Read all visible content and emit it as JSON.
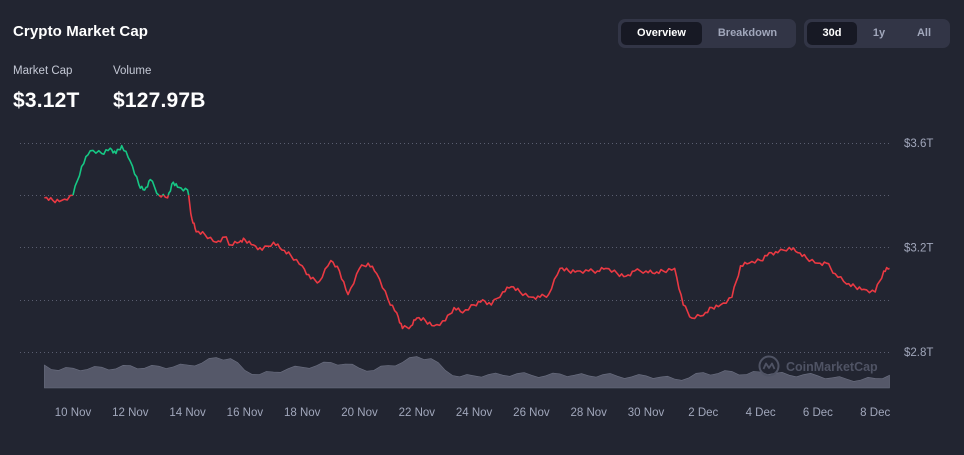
{
  "header": {
    "title": "Crypto Market Cap"
  },
  "stats": {
    "market_cap_label": "Market Cap",
    "market_cap_value": "$3.12T",
    "volume_label": "Volume",
    "volume_value": "$127.97B"
  },
  "view_toggle": {
    "overview": "Overview",
    "breakdown": "Breakdown",
    "active": "overview"
  },
  "range_toggle": {
    "d30": "30d",
    "y1": "1y",
    "all": "All",
    "active": "30d"
  },
  "watermark": "CoinMarketCap",
  "colors": {
    "up": "#16c784",
    "down": "#ea3943",
    "volume": "#5e6273",
    "grid": "#5a5e70"
  },
  "chart_data": {
    "type": "line",
    "title": "",
    "xlabel": "",
    "ylabel": "",
    "x_start": "9 Nov",
    "x_end": "8 Dec",
    "x_ticks": [
      {
        "day": 10,
        "label": "10 Nov"
      },
      {
        "day": 12,
        "label": "12 Nov"
      },
      {
        "day": 14,
        "label": "14 Nov"
      },
      {
        "day": 16,
        "label": "16 Nov"
      },
      {
        "day": 18,
        "label": "18 Nov"
      },
      {
        "day": 20,
        "label": "20 Nov"
      },
      {
        "day": 22,
        "label": "22 Nov"
      },
      {
        "day": 24,
        "label": "24 Nov"
      },
      {
        "day": 26,
        "label": "26 Nov"
      },
      {
        "day": 28,
        "label": "28 Nov"
      },
      {
        "day": 30,
        "label": "30 Nov"
      },
      {
        "day": 32,
        "label": "2 Dec"
      },
      {
        "day": 34,
        "label": "4 Dec"
      },
      {
        "day": 36,
        "label": "6 Dec"
      },
      {
        "day": 38,
        "label": "8 Dec"
      }
    ],
    "y_ticks": [
      {
        "value": 3.6,
        "label": "$3.6T"
      },
      {
        "value": 3.2,
        "label": "$3.2T"
      },
      {
        "value": 2.8,
        "label": "$2.8T"
      }
    ],
    "ylim": [
      2.8,
      3.6
    ],
    "grid": true,
    "baseline": 3.4,
    "series": [
      {
        "name": "",
        "x": [
          9.0,
          9.3,
          9.6,
          10.0,
          10.3,
          10.6,
          11.0,
          11.3,
          11.5,
          11.7,
          12.0,
          12.3,
          12.5,
          12.7,
          13.0,
          13.3,
          13.5,
          13.7,
          14.0,
          14.15,
          14.3,
          14.6,
          15.0,
          15.3,
          15.5,
          15.8,
          16.0,
          16.3,
          16.6,
          17.0,
          17.3,
          17.6,
          18.0,
          18.3,
          18.6,
          19.0,
          19.3,
          19.6,
          20.0,
          20.3,
          20.6,
          21.0,
          21.3,
          21.5,
          21.8,
          22.0,
          22.3,
          22.6,
          23.0,
          23.3,
          23.6,
          24.0,
          24.3,
          24.6,
          25.0,
          25.3,
          25.6,
          26.0,
          26.3,
          26.6,
          27.0,
          27.3,
          27.6,
          28.0,
          28.3,
          28.6,
          29.0,
          29.3,
          29.6,
          30.0,
          30.3,
          30.6,
          31.0,
          31.3,
          31.6,
          32.0,
          32.3,
          32.6,
          33.0,
          33.3,
          33.6,
          34.0,
          34.3,
          34.6,
          35.0,
          35.3,
          35.6,
          36.0,
          36.3,
          36.6,
          37.0,
          37.3,
          37.6,
          38.0,
          38.3,
          38.5
        ],
        "values": [
          3.39,
          3.38,
          3.38,
          3.4,
          3.51,
          3.57,
          3.56,
          3.58,
          3.56,
          3.59,
          3.53,
          3.44,
          3.42,
          3.46,
          3.4,
          3.39,
          3.45,
          3.43,
          3.42,
          3.31,
          3.26,
          3.25,
          3.22,
          3.24,
          3.21,
          3.22,
          3.23,
          3.21,
          3.19,
          3.22,
          3.19,
          3.17,
          3.13,
          3.08,
          3.07,
          3.15,
          3.11,
          3.02,
          3.12,
          3.14,
          3.1,
          3.0,
          2.95,
          2.89,
          2.9,
          2.93,
          2.92,
          2.9,
          2.92,
          2.97,
          2.95,
          2.98,
          3.0,
          2.98,
          3.03,
          3.05,
          3.03,
          3.01,
          3.01,
          3.02,
          3.12,
          3.11,
          3.11,
          3.11,
          3.11,
          3.12,
          3.1,
          3.09,
          3.11,
          3.11,
          3.1,
          3.11,
          3.12,
          2.98,
          2.93,
          2.94,
          2.97,
          2.98,
          3.01,
          3.13,
          3.14,
          3.15,
          3.18,
          3.18,
          3.2,
          3.18,
          3.16,
          3.14,
          3.14,
          3.1,
          3.06,
          3.05,
          3.04,
          3.03,
          3.11,
          3.12
        ]
      }
    ],
    "volume": {
      "x": [
        9.0,
        9.5,
        10.0,
        10.5,
        11.0,
        11.5,
        12.0,
        12.5,
        13.0,
        13.5,
        14.0,
        14.5,
        15.0,
        15.5,
        16.0,
        16.5,
        17.0,
        17.5,
        18.0,
        18.5,
        19.0,
        19.5,
        20.0,
        20.5,
        21.0,
        21.5,
        22.0,
        22.5,
        23.0,
        23.5,
        24.0,
        24.5,
        25.0,
        25.5,
        26.0,
        26.5,
        27.0,
        27.5,
        28.0,
        28.5,
        29.0,
        29.5,
        30.0,
        30.5,
        31.0,
        31.5,
        32.0,
        32.5,
        33.0,
        33.5,
        34.0,
        34.5,
        35.0,
        35.5,
        36.0,
        36.5,
        37.0,
        37.5,
        38.0,
        38.5
      ],
      "values": [
        0.72,
        0.55,
        0.62,
        0.58,
        0.65,
        0.6,
        0.7,
        0.62,
        0.68,
        0.66,
        0.72,
        0.78,
        0.95,
        0.92,
        0.55,
        0.42,
        0.5,
        0.6,
        0.65,
        0.7,
        0.8,
        0.75,
        0.62,
        0.55,
        0.7,
        0.8,
        0.98,
        0.92,
        0.55,
        0.35,
        0.38,
        0.42,
        0.4,
        0.45,
        0.4,
        0.38,
        0.44,
        0.4,
        0.38,
        0.42,
        0.37,
        0.35,
        0.38,
        0.34,
        0.28,
        0.32,
        0.48,
        0.45,
        0.52,
        0.42,
        0.5,
        0.46,
        0.4,
        0.42,
        0.38,
        0.32,
        0.28,
        0.25,
        0.3,
        0.4
      ]
    }
  }
}
